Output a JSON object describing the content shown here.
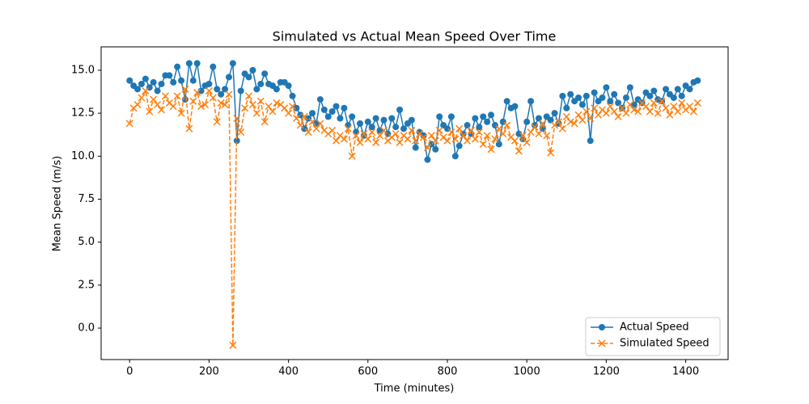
{
  "chart_data": {
    "type": "line",
    "title": "Simulated vs Actual Mean Speed Over Time",
    "xlabel": "Time (minutes)",
    "ylabel": "Mean Speed (m/s)",
    "x": [
      0,
      10,
      20,
      30,
      40,
      50,
      60,
      70,
      80,
      90,
      100,
      110,
      120,
      130,
      140,
      150,
      160,
      170,
      180,
      190,
      200,
      210,
      220,
      230,
      240,
      250,
      260,
      270,
      280,
      290,
      300,
      310,
      320,
      330,
      340,
      350,
      360,
      370,
      380,
      390,
      400,
      410,
      420,
      430,
      440,
      450,
      460,
      470,
      480,
      490,
      500,
      510,
      520,
      530,
      540,
      550,
      560,
      570,
      580,
      590,
      600,
      610,
      620,
      630,
      640,
      650,
      660,
      670,
      680,
      690,
      700,
      710,
      720,
      730,
      740,
      750,
      760,
      770,
      780,
      790,
      800,
      810,
      820,
      830,
      840,
      850,
      860,
      870,
      880,
      890,
      900,
      910,
      920,
      930,
      940,
      950,
      960,
      970,
      980,
      990,
      1000,
      1010,
      1020,
      1030,
      1040,
      1050,
      1060,
      1070,
      1080,
      1090,
      1100,
      1110,
      1120,
      1130,
      1140,
      1150,
      1160,
      1170,
      1180,
      1190,
      1200,
      1210,
      1220,
      1230,
      1240,
      1250,
      1260,
      1270,
      1280,
      1290,
      1300,
      1310,
      1320,
      1330,
      1340,
      1350,
      1360,
      1370,
      1380,
      1390,
      1400,
      1410,
      1420,
      1430
    ],
    "series": [
      {
        "name": "Actual Speed",
        "color": "#1f77b4",
        "marker": "o",
        "linestyle": "solid",
        "values": [
          14.4,
          14.1,
          13.9,
          14.2,
          14.5,
          14.0,
          14.3,
          13.8,
          14.2,
          14.7,
          14.7,
          14.3,
          15.2,
          14.4,
          13.3,
          15.4,
          14.4,
          15.4,
          13.8,
          14.1,
          14.2,
          15.2,
          13.9,
          13.6,
          13.9,
          14.6,
          15.4,
          10.9,
          13.8,
          14.8,
          14.6,
          15.0,
          13.9,
          14.2,
          14.8,
          14.2,
          14.1,
          13.9,
          14.3,
          14.3,
          14.1,
          13.5,
          12.8,
          12.4,
          11.6,
          12.2,
          12.5,
          11.9,
          13.3,
          12.7,
          12.3,
          12.6,
          12.9,
          12.2,
          12.8,
          11.8,
          12.3,
          11.4,
          11.9,
          11.2,
          12.0,
          11.7,
          12.2,
          11.5,
          12.1,
          11.3,
          12.2,
          11.7,
          12.7,
          11.6,
          11.9,
          12.1,
          10.5,
          11.4,
          11.2,
          9.8,
          10.7,
          10.4,
          12.3,
          11.8,
          11.6,
          12.3,
          10.0,
          10.6,
          11.3,
          11.8,
          11.3,
          12.2,
          11.7,
          12.3,
          12.0,
          12.4,
          11.8,
          10.7,
          12.0,
          13.2,
          12.8,
          12.9,
          11.3,
          11.0,
          12.0,
          13.2,
          11.8,
          12.2,
          11.6,
          12.3,
          12.1,
          12.5,
          11.9,
          13.5,
          12.8,
          13.6,
          13.2,
          13.4,
          13.0,
          13.5,
          10.9,
          13.7,
          13.2,
          13.4,
          14.0,
          13.2,
          13.6,
          13.1,
          12.8,
          13.4,
          14.0,
          13.0,
          13.3,
          13.1,
          13.7,
          13.5,
          13.8,
          13.3,
          13.2,
          13.9,
          13.6,
          13.4,
          13.9,
          13.5,
          14.1,
          13.9,
          14.3,
          14.4
        ]
      },
      {
        "name": "Simulated Speed",
        "color": "#ff7f0e",
        "marker": "x",
        "linestyle": "dashed",
        "values": [
          11.9,
          12.8,
          13.0,
          13.4,
          13.8,
          12.6,
          13.3,
          13.0,
          12.7,
          13.5,
          13.1,
          12.9,
          13.5,
          12.5,
          13.9,
          11.6,
          13.2,
          13.7,
          12.9,
          13.0,
          13.8,
          13.4,
          12.0,
          13.1,
          13.0,
          13.6,
          -1.0,
          12.2,
          11.4,
          12.8,
          13.5,
          13.0,
          12.5,
          13.2,
          12.0,
          12.9,
          12.6,
          13.1,
          13.0,
          12.8,
          12.5,
          12.9,
          12.2,
          11.8,
          12.3,
          11.4,
          12.0,
          11.6,
          11.9,
          11.5,
          11.3,
          11.5,
          10.9,
          11.2,
          11.0,
          11.6,
          10.0,
          11.2,
          10.8,
          11.3,
          11.0,
          11.4,
          10.8,
          11.2,
          11.5,
          10.9,
          11.1,
          11.3,
          10.8,
          11.2,
          11.0,
          11.5,
          10.9,
          11.3,
          11.1,
          10.5,
          11.2,
          10.9,
          11.5,
          11.1,
          10.9,
          11.4,
          11.0,
          11.6,
          11.2,
          10.9,
          11.5,
          11.0,
          11.4,
          10.7,
          11.2,
          10.4,
          11.0,
          11.6,
          11.3,
          11.8,
          11.1,
          10.9,
          10.3,
          11.2,
          10.8,
          11.4,
          11.7,
          11.3,
          11.9,
          11.2,
          10.2,
          11.8,
          12.0,
          11.6,
          12.3,
          12.0,
          11.9,
          12.4,
          12.1,
          12.6,
          12.2,
          12.8,
          12.4,
          12.7,
          12.5,
          12.9,
          12.6,
          12.3,
          12.8,
          12.5,
          13.0,
          12.7,
          12.6,
          13.1,
          12.9,
          12.6,
          13.1,
          12.5,
          13.2,
          12.8,
          12.4,
          12.9,
          12.6,
          13.1,
          12.7,
          12.9,
          12.6,
          13.1
        ]
      }
    ],
    "xlim": [
      -71.75,
      1506.75
    ],
    "ylim": [
      -1.83,
      16.36
    ],
    "xticks": [
      0,
      200,
      400,
      600,
      800,
      1000,
      1200,
      1400
    ],
    "yticks": [
      {
        "value": 0,
        "label": "0.0"
      },
      2.5,
      {
        "value": 5,
        "label": "5.0"
      },
      7.5,
      {
        "value": 10,
        "label": "10.0"
      },
      12.5,
      {
        "value": 15,
        "label": "15.0"
      }
    ],
    "legend": "lower right"
  }
}
